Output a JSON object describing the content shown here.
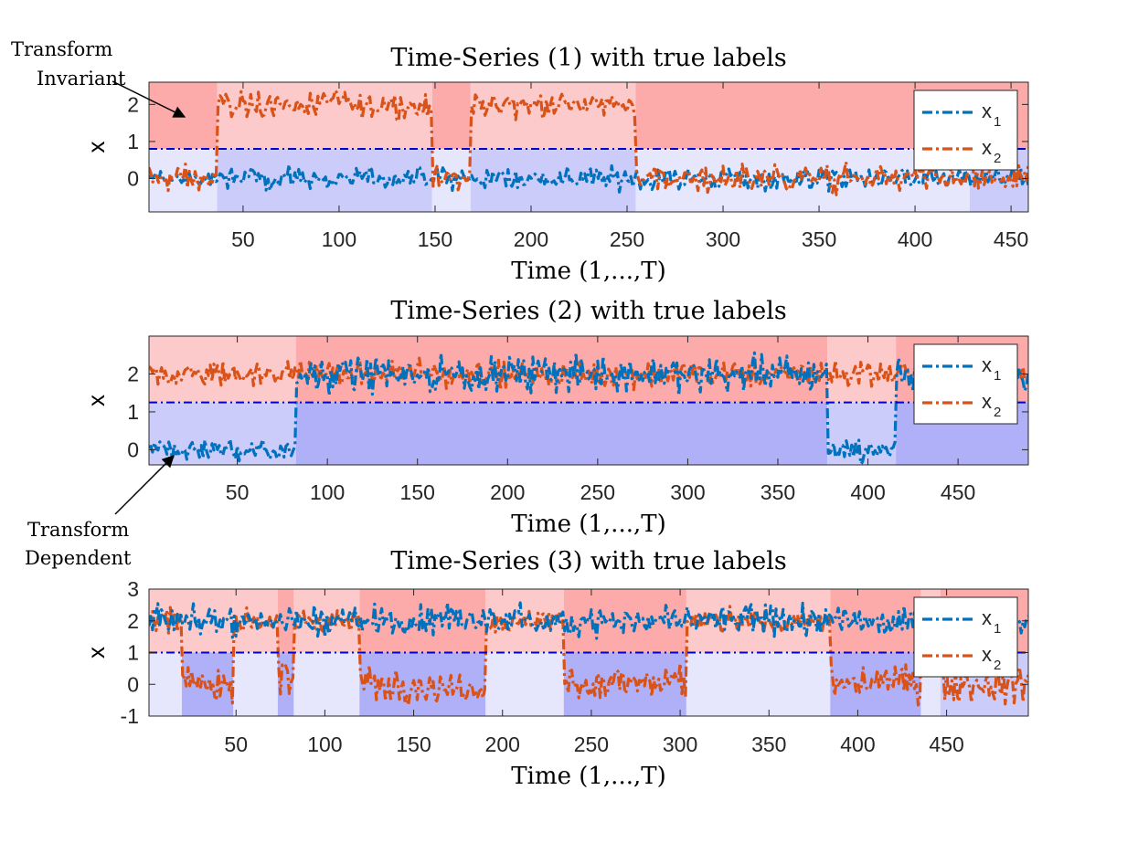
{
  "annotations": {
    "invariant_line1": "Transform",
    "invariant_line2": "Invariant",
    "dependent_line1": "Transform",
    "dependent_line2": "Dependent"
  },
  "colors": {
    "x1": "#0072BD",
    "x2": "#D95319",
    "threshold": "#0000CC",
    "red_dark": "#FCAAAA",
    "red_light": "#FCCACA",
    "red_pale": "#FDE6E6",
    "blue_dark": "#B0B0F8",
    "blue_light": "#CCCCFA",
    "blue_pale": "#E6E6FC"
  },
  "chart_data": [
    {
      "type": "line",
      "title": "Time-Series (1) with true labels",
      "xlabel": "Time (1,...,T)",
      "ylabel": "x",
      "xlim": [
        1,
        459
      ],
      "ylim": [
        -0.9,
        2.6
      ],
      "xticks": [
        50,
        100,
        150,
        200,
        250,
        300,
        350,
        400,
        450
      ],
      "yticks": [
        0,
        1,
        2
      ],
      "threshold": 0.8,
      "legend": [
        "x_1",
        "x_2"
      ],
      "legend_position": "top-right",
      "segments_x2_high": [
        [
          37,
          148
        ],
        [
          169,
          254
        ]
      ],
      "red_bands": [
        {
          "start": 1,
          "end": 36,
          "shade": "dark"
        },
        {
          "start": 37,
          "end": 148,
          "shade": "light"
        },
        {
          "start": 149,
          "end": 168,
          "shade": "dark"
        },
        {
          "start": 169,
          "end": 254,
          "shade": "light"
        },
        {
          "start": 255,
          "end": 459,
          "shade": "dark"
        }
      ],
      "blue_bands": [
        {
          "start": 1,
          "end": 36,
          "shade": "pale"
        },
        {
          "start": 37,
          "end": 148,
          "shade": "light"
        },
        {
          "start": 149,
          "end": 168,
          "shade": "pale"
        },
        {
          "start": 169,
          "end": 254,
          "shade": "light"
        },
        {
          "start": 255,
          "end": 428,
          "shade": "pale"
        },
        {
          "start": 429,
          "end": 459,
          "shade": "light"
        }
      ]
    },
    {
      "type": "line",
      "title": "Time-Series (2) with true labels",
      "xlabel": "Time (1,...,T)",
      "ylabel": "x",
      "xlim": [
        1,
        489
      ],
      "ylim": [
        -0.4,
        3.0
      ],
      "xticks": [
        50,
        100,
        150,
        200,
        250,
        300,
        350,
        400,
        450
      ],
      "yticks": [
        0,
        1,
        2
      ],
      "threshold": 1.25,
      "legend": [
        "x_1",
        "x_2"
      ],
      "legend_position": "top-right",
      "segments_x1_high": [
        [
          83,
          377
        ],
        [
          416,
          489
        ]
      ],
      "red_bands": [
        {
          "start": 1,
          "end": 82,
          "shade": "light"
        },
        {
          "start": 83,
          "end": 377,
          "shade": "dark"
        },
        {
          "start": 378,
          "end": 415,
          "shade": "light"
        },
        {
          "start": 416,
          "end": 489,
          "shade": "dark"
        }
      ],
      "blue_bands": [
        {
          "start": 1,
          "end": 82,
          "shade": "light"
        },
        {
          "start": 83,
          "end": 377,
          "shade": "dark"
        },
        {
          "start": 378,
          "end": 415,
          "shade": "light"
        },
        {
          "start": 416,
          "end": 489,
          "shade": "dark"
        }
      ]
    },
    {
      "type": "line",
      "title": "Time-Series (3) with true labels",
      "xlabel": "Time (1,...,T)",
      "ylabel": "x",
      "xlim": [
        1,
        496
      ],
      "ylim": [
        -1.0,
        3.0
      ],
      "yticks": [
        -1,
        0,
        1,
        2,
        3
      ],
      "xticks": [
        50,
        100,
        150,
        200,
        250,
        300,
        350,
        400,
        450
      ],
      "threshold": 1.0,
      "legend": [
        "x_1",
        "x_2"
      ],
      "legend_position": "top-right",
      "segments_x2_low": [
        [
          20,
          48
        ],
        [
          74,
          82
        ],
        [
          120,
          190
        ],
        [
          235,
          303
        ],
        [
          385,
          435
        ],
        [
          447,
          496
        ]
      ],
      "red_bands": [
        {
          "start": 1,
          "end": 19,
          "shade": "light"
        },
        {
          "start": 20,
          "end": 48,
          "shade": "light"
        },
        {
          "start": 49,
          "end": 73,
          "shade": "light"
        },
        {
          "start": 74,
          "end": 82,
          "shade": "dark"
        },
        {
          "start": 83,
          "end": 119,
          "shade": "light"
        },
        {
          "start": 120,
          "end": 190,
          "shade": "dark"
        },
        {
          "start": 191,
          "end": 234,
          "shade": "light"
        },
        {
          "start": 235,
          "end": 303,
          "shade": "dark"
        },
        {
          "start": 304,
          "end": 384,
          "shade": "light"
        },
        {
          "start": 385,
          "end": 435,
          "shade": "dark"
        },
        {
          "start": 436,
          "end": 446,
          "shade": "light"
        },
        {
          "start": 447,
          "end": 496,
          "shade": "dark"
        }
      ],
      "blue_bands": [
        {
          "start": 1,
          "end": 19,
          "shade": "pale"
        },
        {
          "start": 20,
          "end": 48,
          "shade": "dark"
        },
        {
          "start": 49,
          "end": 73,
          "shade": "pale"
        },
        {
          "start": 74,
          "end": 82,
          "shade": "dark"
        },
        {
          "start": 83,
          "end": 119,
          "shade": "pale"
        },
        {
          "start": 120,
          "end": 190,
          "shade": "dark"
        },
        {
          "start": 191,
          "end": 234,
          "shade": "pale"
        },
        {
          "start": 235,
          "end": 303,
          "shade": "dark"
        },
        {
          "start": 304,
          "end": 384,
          "shade": "pale"
        },
        {
          "start": 385,
          "end": 435,
          "shade": "dark"
        },
        {
          "start": 436,
          "end": 446,
          "shade": "pale"
        },
        {
          "start": 447,
          "end": 496,
          "shade": "light"
        }
      ]
    }
  ]
}
